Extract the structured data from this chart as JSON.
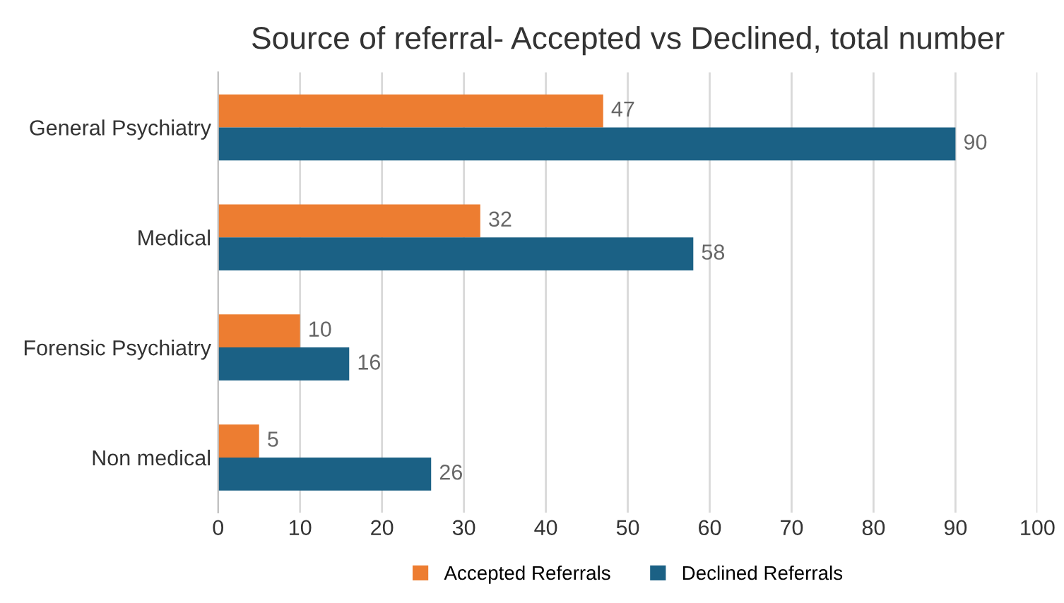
{
  "chart_data": {
    "type": "bar",
    "orientation": "horizontal",
    "title": "Source of referral- Accepted vs Declined, total number",
    "categories": [
      "General Psychiatry",
      "Medical",
      "Forensic Psychiatry",
      "Non medical"
    ],
    "series": [
      {
        "name": "Accepted Referrals",
        "color": "#ed7d31",
        "values": [
          47,
          32,
          10,
          5
        ]
      },
      {
        "name": "Declined Referrals",
        "color": "#1b6185",
        "values": [
          90,
          58,
          16,
          26
        ]
      }
    ],
    "xlim": [
      0,
      100
    ],
    "xticks": [
      0,
      10,
      20,
      30,
      40,
      50,
      60,
      70,
      80,
      90,
      100
    ],
    "grid": "x",
    "legend": "bottom",
    "data_labels": true
  }
}
